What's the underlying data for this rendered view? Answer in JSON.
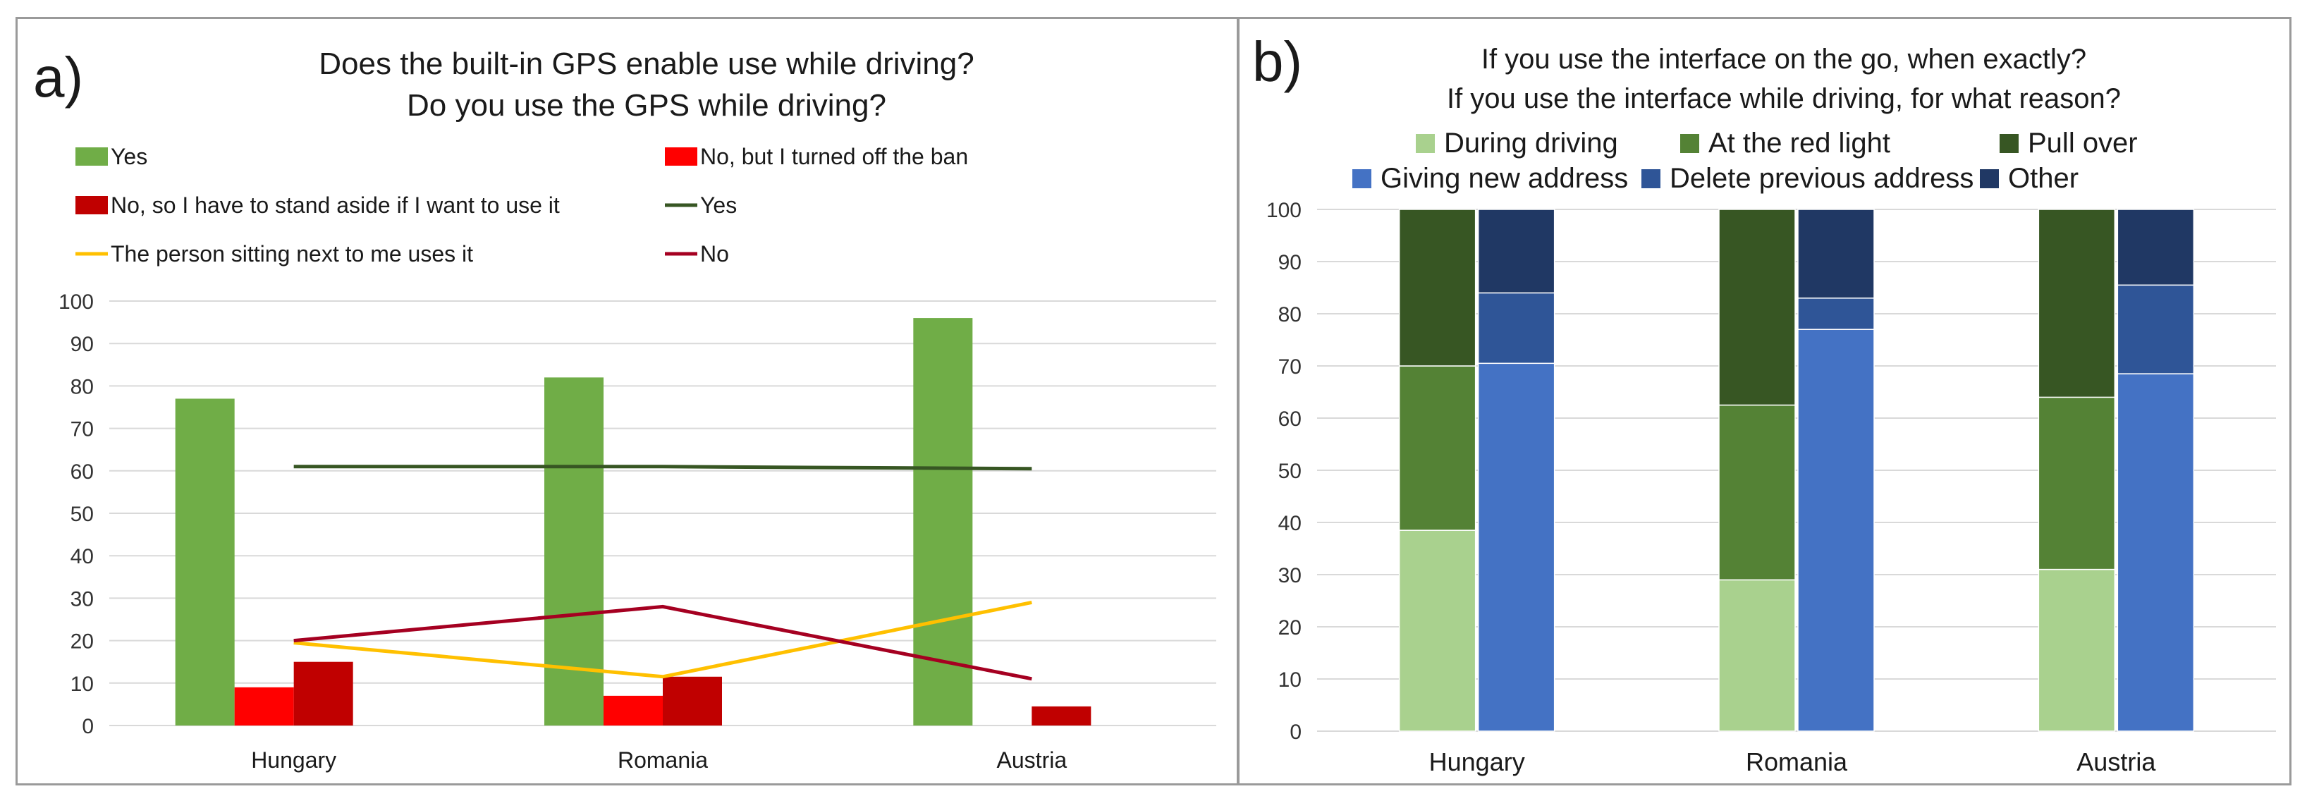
{
  "chart_data": [
    {
      "panel_label": "a)",
      "type": "bar",
      "title_line1": "Does the built-in GPS enable use while driving?",
      "title_line2": "Do you use the GPS while driving?",
      "categories": [
        "Hungary",
        "Romania",
        "Austria"
      ],
      "ylim": [
        0,
        100
      ],
      "yticks": [
        0,
        10,
        20,
        30,
        40,
        50,
        60,
        70,
        80,
        90,
        100
      ],
      "grid": true,
      "legend_position": "top",
      "bar_series": [
        {
          "name": "Yes",
          "color": "#70ad47",
          "values": [
            77,
            82,
            96
          ]
        },
        {
          "name": "No, but I turned off the ban",
          "color": "#ff0000",
          "values": [
            9,
            7,
            0
          ]
        },
        {
          "name": "No, so I have to stand aside if I want to use it",
          "color": "#c00000",
          "values": [
            15,
            11.5,
            4.5
          ]
        }
      ],
      "line_series": [
        {
          "name": "Yes",
          "color": "#375623",
          "values": [
            61,
            61,
            60.5
          ]
        },
        {
          "name": "The person sitting next to me uses it",
          "color": "#ffc000",
          "values": [
            19.5,
            11.5,
            29
          ]
        },
        {
          "name": "No",
          "color": "#a50021",
          "values": [
            20,
            28,
            11
          ]
        }
      ]
    },
    {
      "panel_label": "b)",
      "type": "bar",
      "stacked": true,
      "title_line1": "If you use the interface on the go, when exactly?",
      "title_line2": "If you use the interface while driving, for what reason?",
      "categories": [
        "Hungary",
        "Romania",
        "Austria"
      ],
      "ylim": [
        0,
        100
      ],
      "yticks": [
        0,
        10,
        20,
        30,
        40,
        50,
        60,
        70,
        80,
        90,
        100
      ],
      "grid": true,
      "legend_position": "top",
      "stack_groups": [
        {
          "group": "when",
          "series": [
            {
              "name": "During driving",
              "color": "#a9d18e",
              "values": [
                38.5,
                29,
                31
              ]
            },
            {
              "name": "At the red light",
              "color": "#548235",
              "values": [
                31.5,
                33.5,
                33
              ]
            },
            {
              "name": "Pull over",
              "color": "#375623",
              "values": [
                30,
                37.5,
                36
              ]
            }
          ]
        },
        {
          "group": "reason",
          "series": [
            {
              "name": "Giving new address",
              "color": "#4472c4",
              "values": [
                70.5,
                77,
                68.5
              ]
            },
            {
              "name": "Delete previous address",
              "color": "#2f5597",
              "values": [
                13.5,
                6,
                17
              ]
            },
            {
              "name": "Other",
              "color": "#203864",
              "values": [
                16,
                17,
                14.5
              ]
            }
          ]
        }
      ]
    }
  ]
}
